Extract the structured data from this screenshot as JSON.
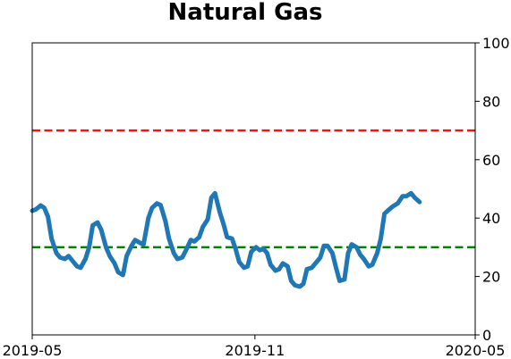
{
  "chart_data": {
    "type": "line",
    "title": "Natural Gas",
    "xlabel": "",
    "ylabel": "",
    "x_ticks": [
      "2019-05",
      "2019-11",
      "2020-05"
    ],
    "y_ticks": [
      "0",
      "20",
      "40",
      "60",
      "80",
      "100"
    ],
    "y_axis_side": "right",
    "xlim": [
      "2019-05-01",
      "2020-05-01"
    ],
    "ylim": [
      0,
      100
    ],
    "grid": false,
    "reference_lines": [
      {
        "y": 70,
        "color": "#e41a1c",
        "style": "dashed"
      },
      {
        "y": 30,
        "color": "#008000",
        "style": "dashed"
      }
    ],
    "series": [
      {
        "color": "#1f77b4",
        "points": [
          [
            "2019-05-01",
            42.5
          ],
          [
            "2019-05-04",
            43
          ],
          [
            "2019-05-08",
            44.3
          ],
          [
            "2019-05-11",
            43.5
          ],
          [
            "2019-05-14",
            40.5
          ],
          [
            "2019-05-17",
            33
          ],
          [
            "2019-05-21",
            28
          ],
          [
            "2019-05-24",
            26.5
          ],
          [
            "2019-05-28",
            26
          ],
          [
            "2019-05-31",
            27
          ],
          [
            "2019-06-03",
            25.5
          ],
          [
            "2019-06-07",
            23.5
          ],
          [
            "2019-06-10",
            23
          ],
          [
            "2019-06-14",
            26
          ],
          [
            "2019-06-17",
            30
          ],
          [
            "2019-06-20",
            37.5
          ],
          [
            "2019-06-24",
            38.5
          ],
          [
            "2019-06-27",
            36
          ],
          [
            "2019-07-01",
            30
          ],
          [
            "2019-07-04",
            27
          ],
          [
            "2019-07-08",
            24.5
          ],
          [
            "2019-07-11",
            21.5
          ],
          [
            "2019-07-15",
            20.5
          ],
          [
            "2019-07-18",
            27
          ],
          [
            "2019-07-22",
            30.5
          ],
          [
            "2019-07-25",
            32.5
          ],
          [
            "2019-07-29",
            31.5
          ],
          [
            "2019-08-01",
            31
          ],
          [
            "2019-08-05",
            40
          ],
          [
            "2019-08-08",
            43.5
          ],
          [
            "2019-08-12",
            45
          ],
          [
            "2019-08-15",
            44.5
          ],
          [
            "2019-08-19",
            39
          ],
          [
            "2019-08-22",
            33
          ],
          [
            "2019-08-26",
            28
          ],
          [
            "2019-08-29",
            26
          ],
          [
            "2019-09-02",
            26.5
          ],
          [
            "2019-09-05",
            29
          ],
          [
            "2019-09-09",
            32.5
          ],
          [
            "2019-09-12",
            32
          ],
          [
            "2019-09-16",
            33.5
          ],
          [
            "2019-09-19",
            37
          ],
          [
            "2019-09-23",
            39.5
          ],
          [
            "2019-09-26",
            47
          ],
          [
            "2019-09-29",
            48.5
          ],
          [
            "2019-10-03",
            42
          ],
          [
            "2019-10-06",
            38
          ],
          [
            "2019-10-09",
            33.5
          ],
          [
            "2019-10-13",
            33
          ],
          [
            "2019-10-16",
            29.5
          ],
          [
            "2019-10-19",
            25
          ],
          [
            "2019-10-23",
            23
          ],
          [
            "2019-10-26",
            23.5
          ],
          [
            "2019-10-29",
            28.5
          ],
          [
            "2019-11-02",
            30
          ],
          [
            "2019-11-05",
            29
          ],
          [
            "2019-11-08",
            29.5
          ],
          [
            "2019-11-11",
            28
          ],
          [
            "2019-11-14",
            24
          ],
          [
            "2019-11-18",
            22
          ],
          [
            "2019-11-21",
            22.5
          ],
          [
            "2019-11-24",
            24.5
          ],
          [
            "2019-11-28",
            23.5
          ],
          [
            "2019-12-01",
            18.5
          ],
          [
            "2019-12-04",
            17
          ],
          [
            "2019-12-08",
            16.5
          ],
          [
            "2019-12-11",
            17.5
          ],
          [
            "2019-12-14",
            22.5
          ],
          [
            "2019-12-18",
            23
          ],
          [
            "2019-12-21",
            24.5
          ],
          [
            "2019-12-25",
            26.5
          ],
          [
            "2019-12-28",
            30.5
          ],
          [
            "2019-12-31",
            30.5
          ],
          [
            "2020-01-04",
            28
          ],
          [
            "2020-01-07",
            23
          ],
          [
            "2020-01-10",
            18.5
          ],
          [
            "2020-01-14",
            19
          ],
          [
            "2020-01-17",
            28
          ],
          [
            "2020-01-20",
            31
          ],
          [
            "2020-01-24",
            30
          ],
          [
            "2020-01-27",
            27.5
          ],
          [
            "2020-01-30",
            26
          ],
          [
            "2020-02-03",
            23.5
          ],
          [
            "2020-02-06",
            24
          ],
          [
            "2020-02-10",
            28
          ],
          [
            "2020-02-13",
            33
          ],
          [
            "2020-02-16",
            41.5
          ],
          [
            "2020-02-20",
            43
          ],
          [
            "2020-02-23",
            44
          ],
          [
            "2020-02-27",
            45
          ],
          [
            "2020-03-02",
            47.5
          ],
          [
            "2020-03-05",
            47.5
          ],
          [
            "2020-03-09",
            48.5
          ],
          [
            "2020-03-12",
            47
          ],
          [
            "2020-03-16",
            45.5
          ]
        ]
      }
    ]
  }
}
